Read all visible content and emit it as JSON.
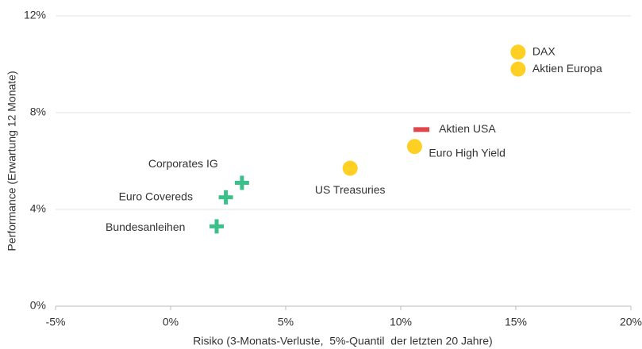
{
  "chart_data": {
    "type": "scatter",
    "xlabel": "Risiko (3-Monats-Verluste,  5%-Quantil  der letzten 20 Jahre)",
    "ylabel": "Performance (Erwartung 12 Monate)",
    "xlim": [
      -5,
      20
    ],
    "xticks": [
      {
        "value": -5,
        "label": "-5%"
      },
      {
        "value": 0,
        "label": "0%"
      },
      {
        "value": 5,
        "label": "5%"
      },
      {
        "value": 10,
        "label": "10%"
      },
      {
        "value": 15,
        "label": "15%"
      },
      {
        "value": 20,
        "label": "20%"
      }
    ],
    "ylim": [
      0,
      12
    ],
    "yticks": [
      {
        "value": 0,
        "label": "0%"
      },
      {
        "value": 4,
        "label": "4%"
      },
      {
        "value": 8,
        "label": "8%"
      },
      {
        "value": 12,
        "label": "12%"
      }
    ],
    "grid": true,
    "series": [
      {
        "marker": "circle",
        "color": "#fdd023",
        "labels": [
          "DAX",
          "Aktien Europa",
          "Euro High Yield",
          "US Treasuries"
        ],
        "x": [
          15.1,
          15.1,
          10.6,
          7.8
        ],
        "values": [
          10.5,
          9.8,
          6.6,
          5.7
        ]
      },
      {
        "marker": "dash",
        "color": "#e0474c",
        "labels": [
          "Aktien USA"
        ],
        "x": [
          10.9
        ],
        "values": [
          7.3
        ]
      },
      {
        "marker": "cross",
        "color": "#3cc08a",
        "labels": [
          "Corporates IG",
          "Euro Covereds",
          "Bundesanleihen"
        ],
        "x": [
          3.1,
          2.4,
          2.0
        ],
        "values": [
          5.1,
          4.5,
          3.3
        ]
      }
    ]
  }
}
